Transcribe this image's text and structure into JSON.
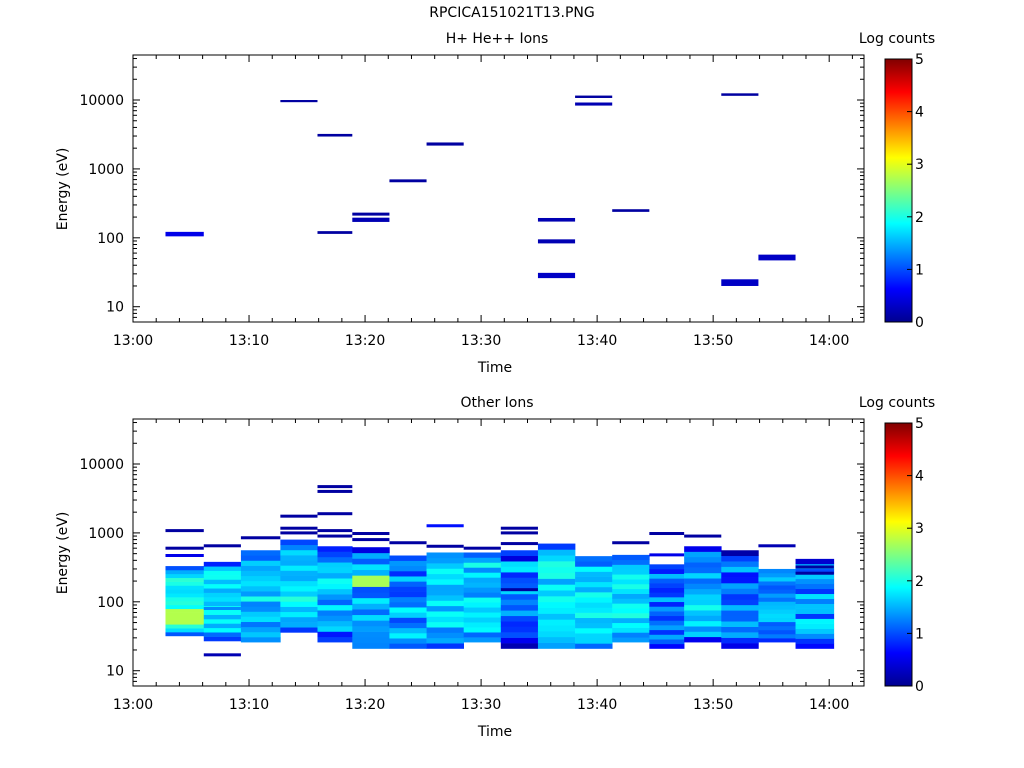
{
  "file_title": "RPCICA151021T13.PNG",
  "colorbar": {
    "label": "Log counts",
    "ticks": [
      "0",
      "1",
      "2",
      "3",
      "4",
      "5"
    ],
    "min": 0,
    "max": 5,
    "colormap": "jet"
  },
  "chart_data": [
    {
      "type": "heatmap",
      "title": "H+ He++ Ions",
      "xlabel": "Time",
      "ylabel": "Energy (eV)",
      "x_ticks": [
        "13:00",
        "13:10",
        "13:20",
        "13:30",
        "13:40",
        "13:50",
        "14:00"
      ],
      "y_ticks": [
        "10",
        "100",
        "1000",
        "10000"
      ],
      "xlim_min": [
        0,
        63
      ],
      "ylim_eV": [
        6,
        45000
      ],
      "y_scale": "log",
      "x_units": "minutes after 13:00",
      "cell_color": "#00008f",
      "cells": [
        {
          "t0": 2.8,
          "t1": 6.1,
          "e0": 105,
          "e1": 122,
          "value": 0.5
        },
        {
          "t0": 12.7,
          "t1": 15.9,
          "e0": 9300,
          "e1": 10000,
          "value": 0.1
        },
        {
          "t0": 15.9,
          "t1": 18.9,
          "e0": 2950,
          "e1": 3220,
          "value": 0.1
        },
        {
          "t0": 15.9,
          "t1": 18.9,
          "e0": 114,
          "e1": 125,
          "value": 0.1
        },
        {
          "t0": 18.9,
          "t1": 22.1,
          "e0": 210,
          "e1": 232,
          "value": 0.1
        },
        {
          "t0": 18.9,
          "t1": 22.1,
          "e0": 170,
          "e1": 196,
          "value": 0.2
        },
        {
          "t0": 22.1,
          "t1": 25.3,
          "e0": 640,
          "e1": 705,
          "value": 0.1
        },
        {
          "t0": 25.3,
          "t1": 28.5,
          "e0": 2180,
          "e1": 2420,
          "value": 0.1
        },
        {
          "t0": 34.9,
          "t1": 38.1,
          "e0": 172,
          "e1": 194,
          "value": 0.2
        },
        {
          "t0": 34.9,
          "t1": 38.1,
          "e0": 83,
          "e1": 95,
          "value": 0.2
        },
        {
          "t0": 34.9,
          "t1": 38.1,
          "e0": 26,
          "e1": 31,
          "value": 0.3
        },
        {
          "t0": 38.1,
          "t1": 41.3,
          "e0": 10700,
          "e1": 11600,
          "value": 0.1
        },
        {
          "t0": 38.1,
          "t1": 41.3,
          "e0": 8300,
          "e1": 9200,
          "value": 0.2
        },
        {
          "t0": 41.3,
          "t1": 44.5,
          "e0": 238,
          "e1": 260,
          "value": 0.1
        },
        {
          "t0": 50.7,
          "t1": 53.9,
          "e0": 11500,
          "e1": 12500,
          "value": 0.1
        },
        {
          "t0": 50.7,
          "t1": 53.9,
          "e0": 20,
          "e1": 25,
          "value": 0.3
        },
        {
          "t0": 53.9,
          "t1": 57.1,
          "e0": 47,
          "e1": 57,
          "value": 0.3
        }
      ]
    },
    {
      "type": "heatmap",
      "title": "Other Ions",
      "xlabel": "Time",
      "ylabel": "Energy (eV)",
      "x_ticks": [
        "13:00",
        "13:10",
        "13:20",
        "13:30",
        "13:40",
        "13:50",
        "14:00"
      ],
      "y_ticks": [
        "10",
        "100",
        "1000",
        "10000"
      ],
      "xlim_min": [
        0,
        63
      ],
      "ylim_eV": [
        6,
        45000
      ],
      "y_scale": "log",
      "x_units": "minutes after 13:00",
      "time_bins": [
        {
          "t0": 2.8,
          "t1": 6.1
        },
        {
          "t0": 6.1,
          "t1": 9.3
        },
        {
          "t0": 9.3,
          "t1": 12.7
        },
        {
          "t0": 12.7,
          "t1": 15.9
        },
        {
          "t0": 15.9,
          "t1": 18.9
        },
        {
          "t0": 18.9,
          "t1": 22.1
        },
        {
          "t0": 22.1,
          "t1": 25.3
        },
        {
          "t0": 25.3,
          "t1": 28.5
        },
        {
          "t0": 28.5,
          "t1": 31.7
        },
        {
          "t0": 31.7,
          "t1": 34.9
        },
        {
          "t0": 34.9,
          "t1": 38.1
        },
        {
          "t0": 38.1,
          "t1": 41.3
        },
        {
          "t0": 41.3,
          "t1": 44.5
        },
        {
          "t0": 44.5,
          "t1": 47.5
        },
        {
          "t0": 47.5,
          "t1": 50.7
        },
        {
          "t0": 50.7,
          "t1": 53.9
        },
        {
          "t0": 53.9,
          "t1": 57.1
        },
        {
          "t0": 57.1,
          "t1": 60.4
        }
      ],
      "columns": [
        {
          "top": 330,
          "bottom": 32,
          "mean": 1.85,
          "var": 0.25
        },
        {
          "top": 380,
          "bottom": 27,
          "mean": 1.65,
          "var": 0.3
        },
        {
          "top": 560,
          "bottom": 26,
          "mean": 1.55,
          "var": 0.45
        },
        {
          "top": 800,
          "bottom": 36,
          "mean": 1.75,
          "var": 0.35
        },
        {
          "top": 640,
          "bottom": 26,
          "mean": 1.45,
          "var": 0.5
        },
        {
          "top": 620,
          "bottom": 21,
          "mean": 1.55,
          "var": 0.55
        },
        {
          "top": 470,
          "bottom": 21,
          "mean": 1.35,
          "var": 0.55
        },
        {
          "top": 520,
          "bottom": 21,
          "mean": 1.6,
          "var": 0.4
        },
        {
          "top": 520,
          "bottom": 26,
          "mean": 1.65,
          "var": 0.4
        },
        {
          "top": 560,
          "bottom": 21,
          "mean": 1.25,
          "var": 0.55
        },
        {
          "top": 700,
          "bottom": 21,
          "mean": 1.75,
          "var": 0.35
        },
        {
          "top": 460,
          "bottom": 21,
          "mean": 1.7,
          "var": 0.35
        },
        {
          "top": 480,
          "bottom": 26,
          "mean": 1.75,
          "var": 0.3
        },
        {
          "top": 350,
          "bottom": 21,
          "mean": 1.2,
          "var": 0.5
        },
        {
          "top": 640,
          "bottom": 26,
          "mean": 1.55,
          "var": 0.45
        },
        {
          "top": 560,
          "bottom": 21,
          "mean": 1.2,
          "var": 0.55
        },
        {
          "top": 300,
          "bottom": 26,
          "mean": 1.45,
          "var": 0.45
        },
        {
          "top": 420,
          "bottom": 21,
          "mean": 1.35,
          "var": 0.5
        }
      ],
      "lines": [
        {
          "t0": 2.8,
          "t1": 6.1,
          "e": 1080,
          "value": 0.1
        },
        {
          "t0": 2.8,
          "t1": 6.1,
          "e": 600,
          "value": 0.1
        },
        {
          "t0": 2.8,
          "t1": 6.1,
          "e": 470,
          "value": 0.5
        },
        {
          "t0": 6.1,
          "t1": 9.3,
          "e": 650,
          "value": 0.1
        },
        {
          "t0": 6.1,
          "t1": 9.3,
          "e": 17,
          "value": 0.2
        },
        {
          "t0": 6.1,
          "t1": 9.3,
          "e": 80,
          "value": 1.3
        },
        {
          "t0": 9.3,
          "t1": 12.7,
          "e": 850,
          "value": 0.1
        },
        {
          "t0": 12.7,
          "t1": 15.9,
          "e": 1750,
          "value": 0.1
        },
        {
          "t0": 12.7,
          "t1": 15.9,
          "e": 1170,
          "value": 0.1
        },
        {
          "t0": 12.7,
          "t1": 15.9,
          "e": 1000,
          "value": 0.1
        },
        {
          "t0": 15.9,
          "t1": 18.9,
          "e": 4700,
          "value": 0.1
        },
        {
          "t0": 15.9,
          "t1": 18.9,
          "e": 4000,
          "value": 0.1
        },
        {
          "t0": 15.9,
          "t1": 18.9,
          "e": 1900,
          "value": 0.1
        },
        {
          "t0": 15.9,
          "t1": 18.9,
          "e": 1080,
          "value": 0.1
        },
        {
          "t0": 15.9,
          "t1": 18.9,
          "e": 900,
          "value": 0.1
        },
        {
          "t0": 18.9,
          "t1": 22.1,
          "e": 980,
          "value": 0.1
        },
        {
          "t0": 18.9,
          "t1": 22.1,
          "e": 800,
          "value": 0.1
        },
        {
          "t0": 22.1,
          "t1": 25.3,
          "e": 720,
          "value": 0.1
        },
        {
          "t0": 25.3,
          "t1": 28.5,
          "e": 1270,
          "value": 0.7
        },
        {
          "t0": 25.3,
          "t1": 28.5,
          "e": 640,
          "value": 0.1
        },
        {
          "t0": 28.5,
          "t1": 31.7,
          "e": 600,
          "value": 0.1
        },
        {
          "t0": 31.7,
          "t1": 34.9,
          "e": 1170,
          "value": 0.1
        },
        {
          "t0": 31.7,
          "t1": 34.9,
          "e": 1000,
          "value": 0.1
        },
        {
          "t0": 31.7,
          "t1": 34.9,
          "e": 700,
          "value": 0.1
        },
        {
          "t0": 31.7,
          "t1": 34.9,
          "e": 150,
          "value": 0.1
        },
        {
          "t0": 41.3,
          "t1": 44.5,
          "e": 720,
          "value": 0.1
        },
        {
          "t0": 44.5,
          "t1": 47.5,
          "e": 980,
          "value": 0.1
        },
        {
          "t0": 44.5,
          "t1": 47.5,
          "e": 480,
          "value": 0.5
        },
        {
          "t0": 47.5,
          "t1": 50.7,
          "e": 900,
          "value": 0.1
        },
        {
          "t0": 53.9,
          "t1": 57.1,
          "e": 650,
          "value": 0.2
        },
        {
          "t0": 57.1,
          "t1": 60.4,
          "e": 320,
          "value": 0.1
        },
        {
          "t0": 57.1,
          "t1": 60.4,
          "e": 260,
          "value": 0.1
        }
      ]
    }
  ]
}
